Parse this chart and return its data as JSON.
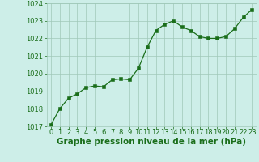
{
  "x": [
    0,
    1,
    2,
    3,
    4,
    5,
    6,
    7,
    8,
    9,
    10,
    11,
    12,
    13,
    14,
    15,
    16,
    17,
    18,
    19,
    20,
    21,
    22,
    23
  ],
  "y": [
    1017.1,
    1018.0,
    1018.6,
    1018.85,
    1019.2,
    1019.3,
    1019.25,
    1019.65,
    1019.7,
    1019.65,
    1020.3,
    1021.5,
    1022.45,
    1022.8,
    1023.0,
    1022.65,
    1022.45,
    1022.1,
    1022.0,
    1022.0,
    1022.1,
    1022.55,
    1023.2,
    1023.65
  ],
  "line_color": "#1a6e1a",
  "marker_color": "#1a6e1a",
  "bg_color": "#cdeee8",
  "grid_color": "#a0c8b8",
  "title": "Graphe pression niveau de la mer (hPa)",
  "ylim": [
    1017,
    1024
  ],
  "yticks": [
    1017,
    1018,
    1019,
    1020,
    1021,
    1022,
    1023,
    1024
  ],
  "xticks": [
    0,
    1,
    2,
    3,
    4,
    5,
    6,
    7,
    8,
    9,
    10,
    11,
    12,
    13,
    14,
    15,
    16,
    17,
    18,
    19,
    20,
    21,
    22,
    23
  ],
  "title_fontsize": 7.5,
  "tick_fontsize": 6.0,
  "title_color": "#1a6e1a",
  "tick_color": "#1a6e1a"
}
